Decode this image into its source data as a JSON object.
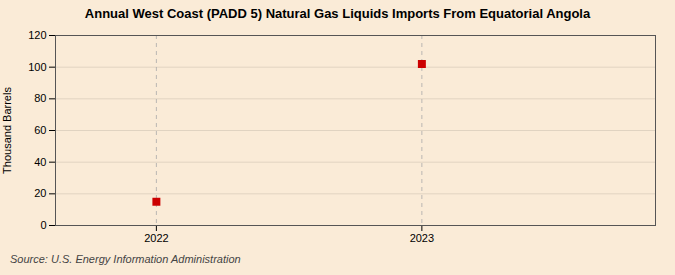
{
  "chart_data": {
    "type": "scatter",
    "title": "Annual West Coast (PADD 5) Natural Gas Liquids Imports From Equatorial Angola",
    "ylabel": "Thousand Barrels",
    "annotation": "Source: U.S. Energy Information Administration",
    "x": [
      2022,
      2023
    ],
    "values": [
      15,
      102
    ],
    "color": "#cc0000",
    "marker": "square",
    "xlim": [
      2021.62,
      2023.88
    ],
    "xticks": [
      2022,
      2023
    ],
    "ylim": [
      0,
      120
    ],
    "yticks": [
      0,
      20,
      40,
      60,
      80,
      100,
      120
    ],
    "grid": true
  }
}
